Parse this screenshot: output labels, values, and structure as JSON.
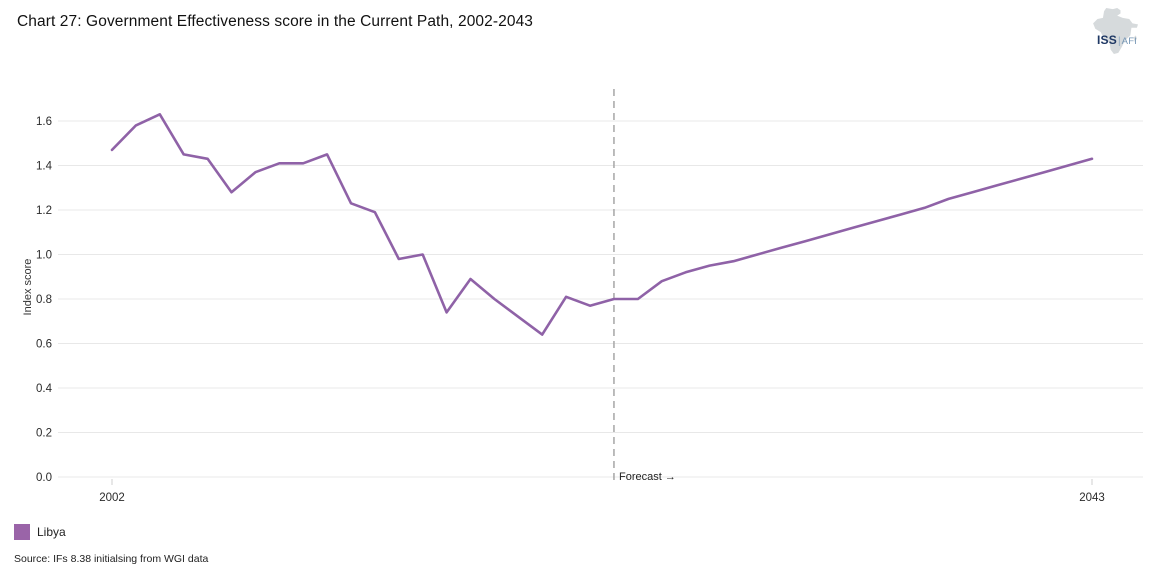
{
  "header": {
    "title": "Chart 27: Government Effectiveness score in the Current Path, 2002-2043"
  },
  "logo": {
    "primary": "ISS",
    "separator": "|",
    "secondary": "AFI",
    "primary_color": "#1F3864",
    "secondary_color": "#7596B5",
    "map_color": "#D6DADC",
    "icon": "africa-silhouette"
  },
  "chart_data": {
    "type": "line",
    "title": "Chart 27: Government Effectiveness score in the Current Path, 2002-2043",
    "xlabel": "",
    "ylabel": "Index score",
    "ylim": [
      0.0,
      1.6
    ],
    "ytick_step": 0.2,
    "yticks": [
      "0.0",
      "0.2",
      "0.4",
      "0.6",
      "0.8",
      "1.0",
      "1.2",
      "1.4",
      "1.6"
    ],
    "xtick_labels_visible": [
      "2002",
      "2043"
    ],
    "grid": "horizontal",
    "gridline_color": "#E8E8E8",
    "x": [
      2002,
      2003,
      2004,
      2005,
      2006,
      2007,
      2008,
      2009,
      2010,
      2011,
      2012,
      2013,
      2014,
      2015,
      2016,
      2017,
      2018,
      2019,
      2020,
      2021,
      2022,
      2023,
      2024,
      2025,
      2026,
      2027,
      2028,
      2029,
      2030,
      2031,
      2032,
      2033,
      2034,
      2035,
      2036,
      2037,
      2038,
      2039,
      2040,
      2041,
      2042,
      2043
    ],
    "series": [
      {
        "name": "Libya",
        "color": "#8F62A7",
        "values": [
          1.47,
          1.58,
          1.63,
          1.45,
          1.43,
          1.28,
          1.37,
          1.41,
          1.41,
          1.45,
          1.23,
          1.19,
          0.98,
          1.0,
          0.74,
          0.89,
          0.8,
          0.72,
          0.64,
          0.81,
          0.77,
          0.8,
          0.8,
          0.88,
          0.92,
          0.95,
          0.97,
          1.0,
          1.03,
          1.06,
          1.09,
          1.12,
          1.15,
          1.18,
          1.21,
          1.25,
          1.28,
          1.31,
          1.34,
          1.37,
          1.4,
          1.43
        ]
      }
    ],
    "forecast": {
      "x": 2023,
      "label": "Forecast →",
      "line_style": "dashed",
      "line_color": "#A6A6A6"
    },
    "legend_position": "bottom-left"
  },
  "legend": {
    "items": [
      {
        "label": "Libya",
        "color": "#9A64A8"
      }
    ]
  },
  "source": {
    "text": "Source: IFs 8.38 initialsing from WGI data"
  }
}
